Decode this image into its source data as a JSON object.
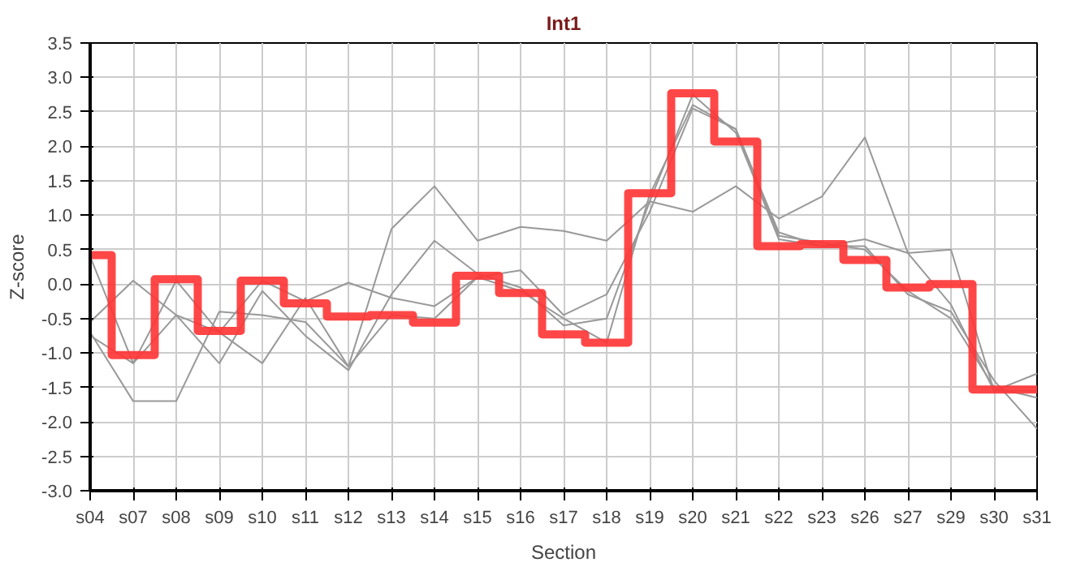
{
  "chart_data": {
    "type": "line",
    "title": "Int1",
    "xlabel": "Section",
    "ylabel": "Z-score",
    "categories": [
      "s04",
      "s07",
      "s08",
      "s09",
      "s10",
      "s11",
      "s12",
      "s13",
      "s14",
      "s15",
      "s16",
      "s17",
      "s18",
      "s19",
      "s20",
      "s21",
      "s22",
      "s23",
      "s26",
      "s27",
      "s29",
      "s30",
      "s31"
    ],
    "ylim": [
      -3,
      3.5
    ],
    "yticks": [
      {
        "value": -3,
        "label": "-3.0"
      },
      {
        "value": -2.5,
        "label": "-2.5"
      },
      {
        "value": -2,
        "label": "-2.0"
      },
      {
        "value": -1.5,
        "label": "-1.5"
      },
      {
        "value": -1,
        "label": "-1.0"
      },
      {
        "value": -0.5,
        "label": "-0.5"
      },
      {
        "value": 0,
        "label": "0.0"
      },
      {
        "value": 0.5,
        "label": "0.5"
      },
      {
        "value": 1,
        "label": "1.0"
      },
      {
        "value": 1.5,
        "label": "1.5"
      },
      {
        "value": 2,
        "label": "2.0"
      },
      {
        "value": 2.5,
        "label": "2.5"
      },
      {
        "value": 3,
        "label": "3.0"
      },
      {
        "value": 3.5,
        "label": "3.5"
      }
    ],
    "grid": true,
    "marker": "none",
    "series": [
      {
        "color": "#999999",
        "values": [
          -0.7,
          -1.7,
          -1.7,
          -0.4,
          -0.45,
          -0.55,
          -1.2,
          0.8,
          1.42,
          0.63,
          0.83,
          0.77,
          0.63,
          1.2,
          1.05,
          1.42,
          0.95,
          1.27,
          2.13,
          0.45,
          0.5,
          -1.55,
          -1.3
        ]
      },
      {
        "color": "#999999",
        "values": [
          0.4,
          -1.15,
          -0.45,
          -0.7,
          0.05,
          -0.25,
          0.02,
          -0.2,
          -0.32,
          0.1,
          0.2,
          -0.45,
          -0.15,
          1.05,
          2.55,
          2.25,
          0.75,
          0.55,
          0.65,
          0.45,
          -0.3,
          -1.55,
          -1.55
        ]
      },
      {
        "color": "#999999",
        "values": [
          -0.55,
          0.05,
          -0.45,
          -1.15,
          -0.1,
          -0.75,
          -1.25,
          -0.15,
          0.63,
          0.15,
          -0.05,
          -0.6,
          -0.5,
          1.2,
          2.75,
          2.2,
          0.65,
          0.55,
          0.55,
          -0.15,
          -0.4,
          -1.4,
          -2.1
        ]
      },
      {
        "color": "#999999",
        "values": [
          -0.75,
          -1.15,
          0.05,
          -0.7,
          -1.15,
          -0.2,
          -1.2,
          -0.45,
          -0.5,
          0.1,
          -0.1,
          -0.5,
          -0.85,
          1.3,
          2.6,
          2.25,
          0.7,
          0.6,
          0.5,
          -0.1,
          -0.5,
          -1.5,
          -1.65
        ]
      },
      {
        "type": "step",
        "color": "#ff3333",
        "values": [
          0.42,
          -1.03,
          0.07,
          -0.68,
          0.05,
          -0.28,
          -0.47,
          -0.45,
          -0.56,
          0.12,
          -0.13,
          -0.73,
          -0.85,
          1.32,
          2.77,
          2.07,
          0.55,
          0.58,
          0.35,
          -0.05,
          0.0,
          -1.53,
          -1.53
        ]
      }
    ]
  }
}
